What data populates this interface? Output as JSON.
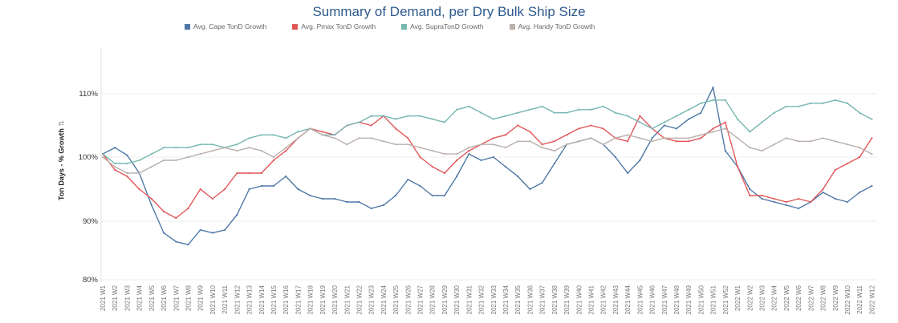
{
  "chart_data": {
    "type": "line",
    "title": "Summary of Demand, per Dry Bulk Ship Size",
    "ylabel": "Ton Days - % Growth",
    "xlabel": "",
    "ylim": [
      80,
      111
    ],
    "y_ticks": [
      "80%",
      "90%",
      "100%",
      "110%"
    ],
    "y_tick_values": [
      80,
      90,
      100,
      110
    ],
    "legend_position": "top",
    "grid": "horizontal",
    "categories": [
      "2021 W1",
      "2021 W2",
      "2021 W3",
      "2021 W4",
      "2021 W5",
      "2021 W6",
      "2021 W7",
      "2021 W8",
      "2021 W9",
      "2021 W10",
      "2021 W11",
      "2021 W12",
      "2021 W13",
      "2021 W14",
      "2021 W15",
      "2021 W16",
      "2021 W17",
      "2021 W18",
      "2021 W19",
      "2021 W20",
      "2021 W21",
      "2021 W22",
      "2021 W23",
      "2021 W24",
      "2021 W25",
      "2021 W26",
      "2021 W27",
      "2021 W28",
      "2021 W29",
      "2021 W30",
      "2021 W31",
      "2021 W32",
      "2021 W33",
      "2021 W34",
      "2021 W35",
      "2021 W36",
      "2021 W37",
      "2021 W38",
      "2021 W39",
      "2021 W40",
      "2021 W41",
      "2021 W42",
      "2021 W43",
      "2021 W44",
      "2021 W45",
      "2021 W46",
      "2021 W47",
      "2021 W48",
      "2021 W49",
      "2021 W50",
      "2021 W51",
      "2021 W52",
      "2022 W1",
      "2022 W2",
      "2022 W3",
      "2022 W4",
      "2022 W5",
      "2022 W6",
      "2022 W7",
      "2022 W8",
      "2022 W9",
      "2022 W10",
      "2022 W11",
      "2022 W12"
    ],
    "series": [
      {
        "name": "Avg. Cape TonD Growth",
        "color": "#4e79a7",
        "values": [
          100.5,
          101.5,
          100.3,
          97.5,
          92.5,
          88,
          86.5,
          86,
          88.5,
          88,
          88.5,
          91,
          95,
          95.5,
          95.5,
          97,
          95,
          94,
          93.5,
          93.5,
          93,
          93,
          92,
          92.5,
          94,
          96.5,
          95.5,
          94,
          94,
          97,
          100.5,
          99.5,
          100,
          98.5,
          97,
          95,
          96,
          99,
          102,
          102.5,
          103,
          102,
          100,
          97.5,
          99.5,
          103,
          105,
          104.5,
          106,
          107,
          111,
          101,
          98.5,
          95,
          93.5,
          93,
          92.5,
          92,
          93,
          94.5,
          93.5,
          93,
          94.5,
          95.5
        ]
      },
      {
        "name": "Avg. Pmax TonD Growth",
        "color": "#e15759",
        "values": [
          100.5,
          98,
          97,
          95,
          93.5,
          91.5,
          90.5,
          92,
          95,
          93.5,
          95,
          97.5,
          97.5,
          97.5,
          99.5,
          101,
          103,
          104.5,
          104,
          103.5,
          105,
          105.5,
          105,
          106.5,
          104.5,
          103,
          100,
          98.5,
          97.5,
          99.5,
          101,
          102,
          103,
          103.5,
          105,
          104,
          102,
          102.5,
          103.5,
          104.5,
          105,
          104.5,
          103,
          102.5,
          106.5,
          104.5,
          103,
          102.5,
          102.5,
          103,
          104.5,
          105.5,
          98.5,
          94,
          94,
          93.5,
          93,
          93.5,
          93,
          95,
          98,
          99,
          100,
          103
        ]
      },
      {
        "name": "Avg. SupraTonD Growth",
        "color": "#76b7b2",
        "values": [
          100.5,
          99,
          99,
          99.5,
          100.5,
          101.5,
          101.5,
          101.5,
          102,
          102,
          101.5,
          102,
          103,
          103.5,
          103.5,
          103,
          104,
          104.5,
          103.5,
          103.5,
          105,
          105.5,
          106.5,
          106.5,
          106,
          106.5,
          106.5,
          106,
          105.5,
          107.5,
          108,
          107,
          106,
          106.5,
          107,
          107.5,
          108,
          107,
          107,
          107.5,
          107.5,
          108,
          107,
          106.5,
          105.5,
          104.5,
          105.5,
          106.5,
          107.5,
          108.5,
          109,
          109,
          106,
          104,
          105.5,
          107,
          108,
          108,
          108.5,
          108.5,
          109,
          108.5,
          107,
          106
        ]
      },
      {
        "name": "Avg. Handy TonD Growth",
        "color": "#bab0ac",
        "values": [
          100,
          98.5,
          97.5,
          97.5,
          98.5,
          99.5,
          99.5,
          100,
          100.5,
          101,
          101.5,
          101,
          101.5,
          101,
          100,
          101.5,
          103,
          104.5,
          103.5,
          103,
          102,
          103,
          103,
          102.5,
          102,
          102,
          101.5,
          101,
          100.5,
          100.5,
          101.5,
          102,
          102,
          101.5,
          102.5,
          102.5,
          101.5,
          101,
          102,
          102.5,
          103,
          102,
          103,
          103.5,
          103,
          102.5,
          103,
          103,
          103,
          103.5,
          104,
          104.5,
          103,
          101.5,
          101,
          102,
          103,
          102.5,
          102.5,
          103,
          102.5,
          102,
          101.5,
          100.5
        ]
      }
    ]
  }
}
